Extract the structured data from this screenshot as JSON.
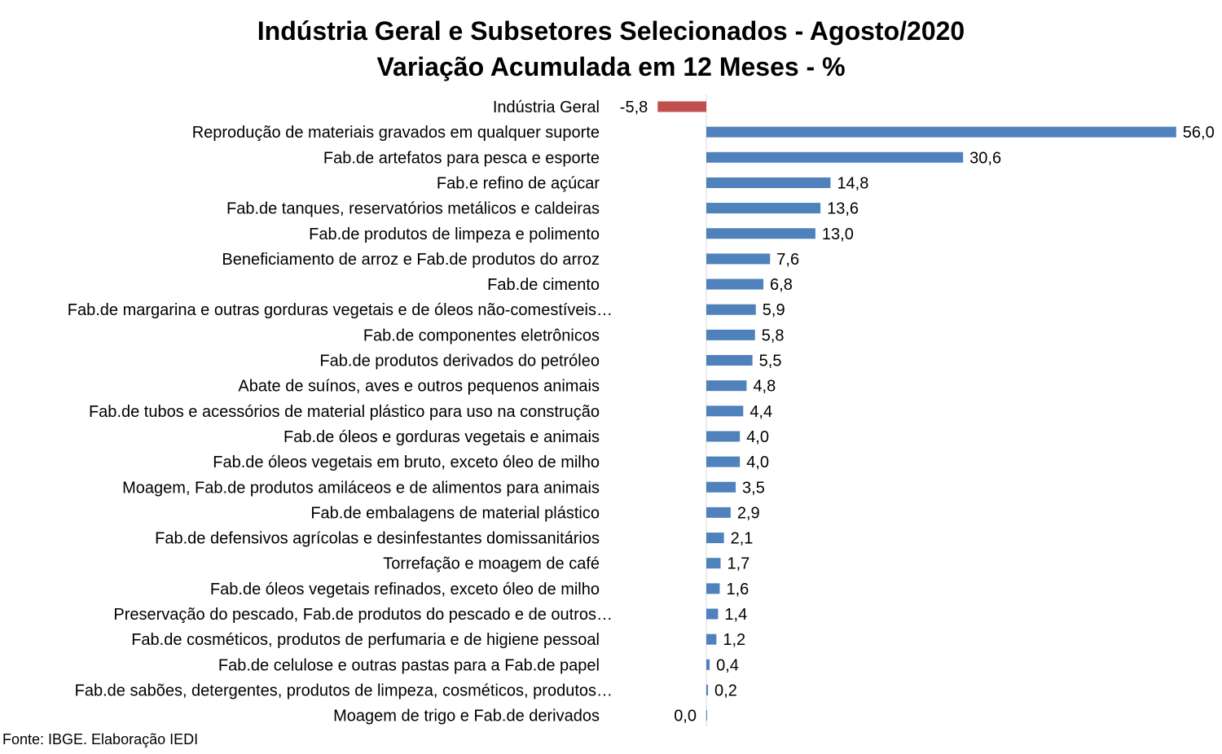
{
  "chart_data": {
    "type": "bar",
    "orientation": "horizontal",
    "title": "Indústria Geral e Subsetores Selecionados - Agosto/2020",
    "subtitle": "Variação Acumulada em 12 Meses - %",
    "categories": [
      "Indústria Geral",
      "Reprodução de materiais gravados em qualquer suporte",
      "Fab.de artefatos para pesca e esporte",
      "Fab.e refino de açúcar",
      "Fab.de tanques, reservatórios metálicos e caldeiras",
      "Fab.de produtos de limpeza e polimento",
      "Beneficiamento de arroz e Fab.de produtos do arroz",
      "Fab.de cimento",
      "Fab.de margarina e outras gorduras vegetais e de óleos não-comestíveis…",
      "Fab.de componentes eletrônicos",
      "Fab.de produtos derivados do petróleo",
      "Abate de suínos, aves e outros pequenos animais",
      "Fab.de tubos e acessórios de material plástico para uso na construção",
      "Fab.de óleos e gorduras vegetais e animais",
      "Fab.de óleos vegetais em bruto, exceto óleo de milho",
      "Moagem, Fab.de produtos amiláceos e de alimentos para animais",
      "Fab.de embalagens de material plástico",
      "Fab.de defensivos agrícolas e desinfestantes domissanitários",
      "Torrefação e moagem de café",
      "Fab.de óleos vegetais refinados, exceto óleo de milho",
      "Preservação do pescado, Fab.de produtos do pescado e de outros…",
      "Fab.de cosméticos, produtos de perfumaria e de higiene pessoal",
      "Fab.de celulose e outras pastas para a Fab.de papel",
      "Fab.de sabões, detergentes, produtos de limpeza, cosméticos, produtos…",
      "Moagem de trigo e Fab.de derivados"
    ],
    "values": [
      -5.8,
      56.0,
      30.6,
      14.8,
      13.6,
      13.0,
      7.6,
      6.8,
      5.9,
      5.8,
      5.5,
      4.8,
      4.4,
      4.0,
      4.0,
      3.5,
      2.9,
      2.1,
      1.7,
      1.6,
      1.4,
      1.2,
      0.4,
      0.2,
      0.0
    ],
    "value_labels": [
      "-5,8",
      "56,0",
      "30,6",
      "14,8",
      "13,6",
      "13,0",
      "7,6",
      "6,8",
      "5,9",
      "5,8",
      "5,5",
      "4,8",
      "4,4",
      "4,0",
      "4,0",
      "3,5",
      "2,9",
      "2,1",
      "1,7",
      "1,6",
      "1,4",
      "1,2",
      "0,4",
      "0,2",
      "0,0"
    ],
    "colors": {
      "positive": "#4f81bd",
      "negative": "#c0504d",
      "axis": "#d9d9d9"
    },
    "grid": false,
    "legend": "none"
  },
  "source": "Fonte: IBGE. Elaboração IEDI"
}
